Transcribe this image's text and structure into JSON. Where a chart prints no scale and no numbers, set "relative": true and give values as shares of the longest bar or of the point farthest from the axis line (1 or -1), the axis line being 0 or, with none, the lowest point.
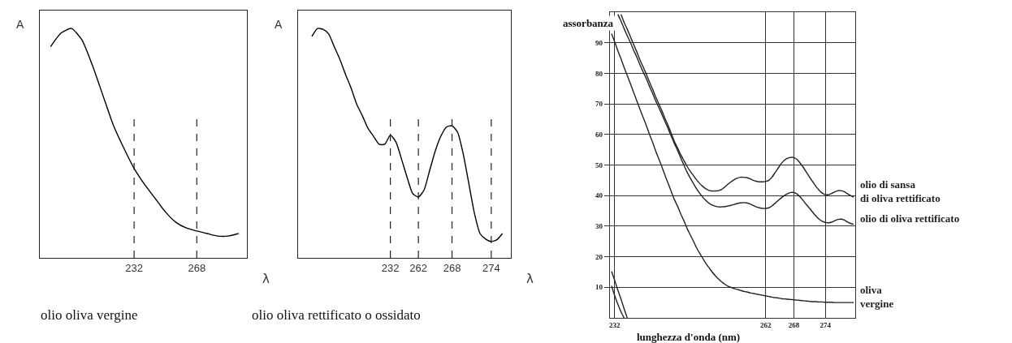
{
  "chart_data": [
    {
      "type": "line",
      "title": "olio oliva vergine",
      "ylabel": "A",
      "xlabel": "λ",
      "relative": true,
      "line_style": "solid",
      "categories": [
        null,
        null,
        null,
        null,
        null,
        null,
        null,
        null,
        "232",
        null,
        null,
        null,
        null,
        null,
        "268",
        null,
        null,
        null,
        null
      ],
      "series": [
        {
          "color": "#000000",
          "values": [
            0.92,
            0.98,
            1,
            0.95,
            0.84,
            0.71,
            0.58,
            0.48,
            0.39,
            0.32,
            0.26,
            0.2,
            0.155,
            0.13,
            0.117,
            0.106,
            0.095,
            0.095,
            0.106
          ]
        }
      ],
      "ref_lines": [
        {
          "axis": "x",
          "value": "232",
          "line_style": "dashed"
        },
        {
          "axis": "x",
          "value": "268",
          "line_style": "dashed"
        }
      ]
    },
    {
      "type": "line",
      "title": "olio oliva rettificato o ossidato",
      "ylabel": "A",
      "xlabel": "λ",
      "relative": true,
      "line_style": "solid",
      "categories": [
        null,
        null,
        null,
        null,
        null,
        null,
        null,
        null,
        null,
        null,
        null,
        null,
        null,
        null,
        "232",
        null,
        null,
        null,
        null,
        "262",
        null,
        null,
        null,
        null,
        null,
        "268",
        null,
        null,
        null,
        null,
        null,
        null,
        "274",
        null,
        null
      ],
      "series": [
        {
          "color": "#000000",
          "values": [
            0.965,
            1,
            0.996,
            0.976,
            0.92,
            0.865,
            0.8,
            0.74,
            0.67,
            0.62,
            0.565,
            0.53,
            0.495,
            0.495,
            0.535,
            0.505,
            0.43,
            0.35,
            0.28,
            0.265,
            0.295,
            0.38,
            0.465,
            0.53,
            0.57,
            0.576,
            0.547,
            0.453,
            0.324,
            0.194,
            0.106,
            0.082,
            0.071,
            0.079,
            0.106
          ]
        }
      ],
      "ref_lines": [
        {
          "axis": "x",
          "value": "232",
          "line_style": "dashed"
        },
        {
          "axis": "x",
          "value": "262",
          "line_style": "dashed"
        },
        {
          "axis": "x",
          "value": "268",
          "line_style": "dashed"
        },
        {
          "axis": "x",
          "value": "274",
          "line_style": "dashed"
        }
      ]
    },
    {
      "type": "line",
      "ylabel": "assorbanza",
      "xlabel": "lunghezza d'onda (nm)",
      "ylim": [
        0,
        100
      ],
      "yticks": [
        10,
        20,
        30,
        40,
        50,
        60,
        70,
        80,
        90
      ],
      "grid": true,
      "line_style": "solid",
      "categories": [
        null,
        "232",
        null,
        null,
        null,
        null,
        null,
        null,
        null,
        null,
        null,
        null,
        null,
        null,
        null,
        null,
        null,
        null,
        null,
        null,
        null,
        null,
        null,
        null,
        null,
        null,
        null,
        null,
        null,
        null,
        null,
        null,
        null,
        null,
        null,
        null,
        null,
        null,
        null,
        null,
        null,
        null,
        null,
        null,
        null,
        null,
        null,
        null,
        null,
        "262",
        null,
        null,
        null,
        null,
        null,
        null,
        null,
        null,
        "268",
        null,
        null,
        null,
        null,
        null,
        null,
        null,
        null,
        null,
        "274",
        null,
        null,
        null,
        null,
        null,
        null,
        null,
        null,
        null
      ],
      "series": [
        {
          "name": "olio di sansa\ndi oliva rettificato",
          "color": "#222222",
          "values": [
            null,
            null,
            null,
            99.3,
            96.7,
            94.4,
            92,
            89.5,
            87.1,
            84.5,
            82.2,
            79.9,
            77.3,
            75,
            72.4,
            70.1,
            67.8,
            65.2,
            62.9,
            60.3,
            57.7,
            55.6,
            53.4,
            51.5,
            49.6,
            48,
            46.6,
            45.2,
            44,
            43,
            42.2,
            41.7,
            41.5,
            41.5,
            41.6,
            42,
            42.8,
            43.7,
            44.5,
            45.2,
            45.7,
            46,
            46,
            45.9,
            45.5,
            45,
            44.7,
            44.5,
            44.5,
            44.6,
            45,
            46,
            47.5,
            49,
            50.5,
            51.6,
            52.2,
            52.5,
            52.4,
            51.8,
            50.6,
            49.2,
            47.6,
            46,
            44.5,
            43,
            41.8,
            40.8,
            40.3,
            40.3,
            40.7,
            41.2,
            41.6,
            41.6,
            41.3,
            40.6,
            40,
            39.5
          ]
        },
        {
          "name": "olio di oliva rettificato",
          "color": "#222222",
          "values": [
            null,
            null,
            99.3,
            97.1,
            94.6,
            92.3,
            90.1,
            87.6,
            85.4,
            82.9,
            80.6,
            78.4,
            75.9,
            73.6,
            71.1,
            68.9,
            66.6,
            64.2,
            61.9,
            59.4,
            57,
            54.8,
            52.3,
            50,
            47.7,
            45.8,
            44,
            42.3,
            40.8,
            39.5,
            38.4,
            37.5,
            36.9,
            36.5,
            36.3,
            36.3,
            36.4,
            36.6,
            36.8,
            37.1,
            37.4,
            37.6,
            37.7,
            37.6,
            37.3,
            36.8,
            36.3,
            36,
            35.8,
            35.8,
            36,
            36.6,
            37.5,
            38.4,
            39.3,
            40,
            40.6,
            41,
            41,
            40.5,
            39.5,
            38.3,
            37,
            35.8,
            34.5,
            33.3,
            32.3,
            31.6,
            31.2,
            31.1,
            31.3,
            31.8,
            32.2,
            32.3,
            32,
            31.4,
            30.9,
            30.6
          ]
        },
        {
          "name": "oliva\nvergine",
          "color": "#222222",
          "values": [
            93,
            90.3,
            87.4,
            84.8,
            81.9,
            79.3,
            76.6,
            73.8,
            71.1,
            68.4,
            65.7,
            63.1,
            60.2,
            57.6,
            54.7,
            52.1,
            49.5,
            46.6,
            44,
            41.3,
            38.7,
            36.5,
            34,
            31.8,
            29.3,
            27.2,
            25.2,
            23,
            21.2,
            19.5,
            17.8,
            16.4,
            15,
            13.8,
            12.7,
            11.8,
            11,
            10.4,
            10,
            9.6,
            9.3,
            9,
            8.7,
            8.5,
            8.2,
            8,
            7.8,
            7.6,
            7.4,
            7.2,
            7,
            6.8,
            6.6,
            6.5,
            6.3,
            6.2,
            6.1,
            6,
            5.9,
            5.8,
            5.7,
            5.6,
            5.5,
            5.4,
            5.3,
            5.3,
            5.2,
            5.2,
            5.1,
            5.1,
            5.1,
            5,
            5,
            5,
            5,
            5,
            5,
            5
          ]
        },
        {
          "color": "#222222",
          "values": [
            15.2,
            12.3,
            9.1,
            6.2,
            3,
            0,
            null,
            null,
            null,
            null,
            null,
            null,
            null,
            null,
            null,
            null,
            null,
            null,
            null,
            null,
            null,
            null,
            null,
            null,
            null,
            null,
            null,
            null,
            null,
            null,
            null,
            null,
            null,
            null,
            null,
            null,
            null,
            null,
            null,
            null,
            null,
            null,
            null,
            null,
            null,
            null,
            null,
            null,
            null,
            null,
            null,
            null,
            null,
            null,
            null,
            null,
            null,
            null,
            null,
            null,
            null,
            null,
            null,
            null,
            null,
            null,
            null,
            null,
            null,
            null,
            null,
            null,
            null,
            null,
            null,
            null,
            null,
            null
          ]
        },
        {
          "color": "#222222",
          "values": [
            10.5,
            7.3,
            4.5,
            2,
            0,
            null,
            null,
            null,
            null,
            null,
            null,
            null,
            null,
            null,
            null,
            null,
            null,
            null,
            null,
            null,
            null,
            null,
            null,
            null,
            null,
            null,
            null,
            null,
            null,
            null,
            null,
            null,
            null,
            null,
            null,
            null,
            null,
            null,
            null,
            null,
            null,
            null,
            null,
            null,
            null,
            null,
            null,
            null,
            null,
            null,
            null,
            null,
            null,
            null,
            null,
            null,
            null,
            null,
            null,
            null,
            null,
            null,
            null,
            null,
            null,
            null,
            null,
            null,
            null,
            null,
            null,
            null,
            null,
            null,
            null,
            null,
            null,
            null
          ]
        }
      ]
    }
  ]
}
